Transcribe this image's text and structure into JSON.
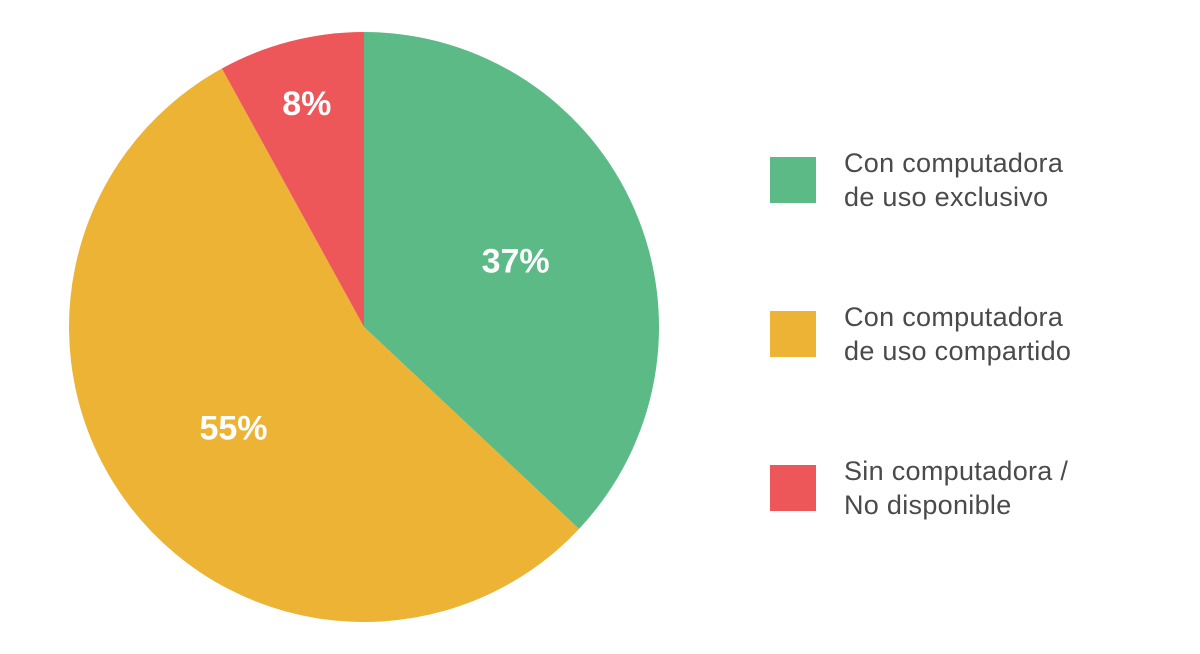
{
  "chart_data": {
    "type": "pie",
    "slices": [
      {
        "label_lines": [
          "Con computadora",
          "de uso exclusivo"
        ],
        "value": 37,
        "display": "37%",
        "color": "#5cba86"
      },
      {
        "label_lines": [
          "Con computadora",
          "de uso compartido"
        ],
        "value": 55,
        "display": "55%",
        "color": "#ecb334"
      },
      {
        "label_lines": [
          "Sin computadora /",
          "No disponible"
        ],
        "value": 8,
        "display": "8%",
        "color": "#ee575a"
      }
    ],
    "start": "top",
    "direction": "clockwise",
    "legend": "right"
  }
}
